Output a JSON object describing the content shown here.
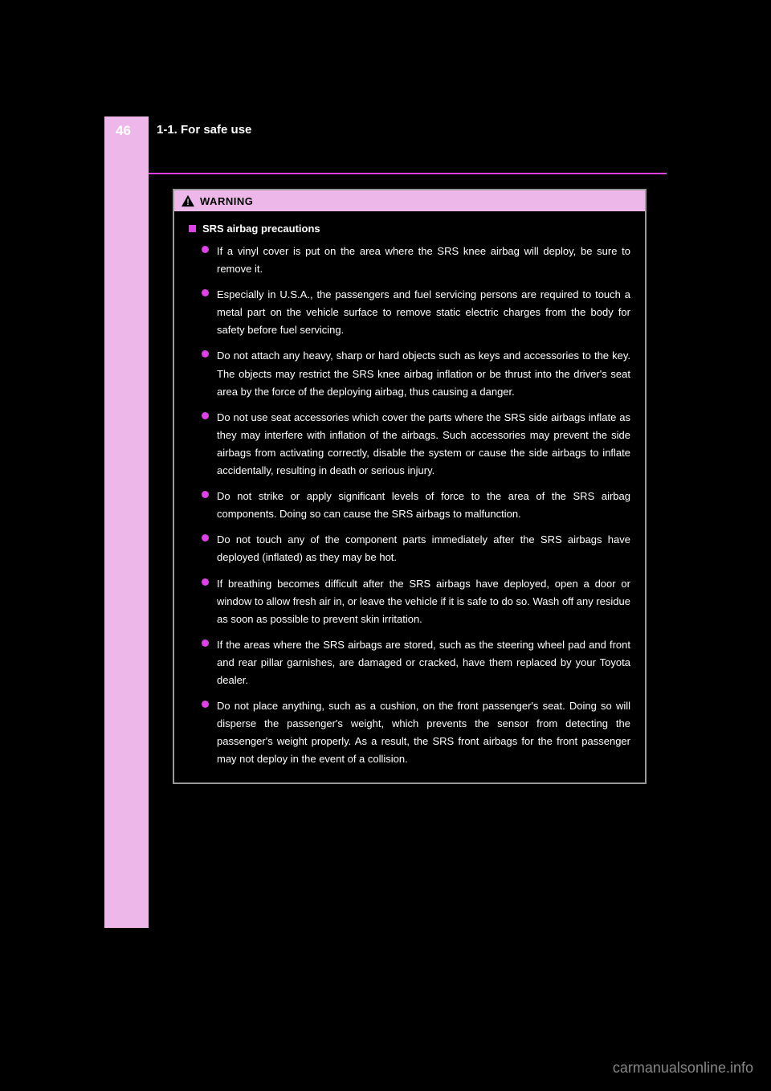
{
  "page": {
    "number": "46",
    "section_title": "1-1. For safe use"
  },
  "warning": {
    "label": "WARNING",
    "heading": "SRS airbag precautions",
    "bullets": [
      "If a vinyl cover is put on the area where the SRS knee airbag will deploy, be sure to remove it.",
      "Especially in U.S.A., the passengers and fuel servicing persons are required to touch a metal part on the vehicle surface to remove static electric charges from the body for safety before fuel servicing.",
      "Do not attach any heavy, sharp or hard objects such as keys and accessories to the key. The objects may restrict the SRS knee airbag inflation or be thrust into the driver's seat area by the force of the deploying airbag, thus causing a danger.",
      "Do not use seat accessories which cover the parts where the SRS side airbags inflate as they may interfere with inflation of the airbags. Such accessories may prevent the side airbags from activating correctly, disable the system or cause the side airbags to inflate accidentally, resulting in death or serious injury.",
      "Do not strike or apply significant levels of force to the area of the SRS airbag components. Doing so can cause the SRS airbags to malfunction.",
      "Do not touch any of the component parts immediately after the SRS airbags have deployed (inflated) as they may be hot.",
      "If breathing becomes difficult after the SRS airbags have deployed, open a door or window to allow fresh air in, or leave the vehicle if it is safe to do so. Wash off any residue as soon as possible to prevent skin irritation.",
      "If the areas where the SRS airbags are stored, such as the steering wheel pad and front and rear pillar garnishes, are damaged or cracked, have them replaced by your Toyota dealer.",
      "Do not place anything, such as a cushion, on the front passenger's seat. Doing so will disperse the passenger's weight, which prevents the sensor from detecting the passenger's weight properly. As a result, the SRS front airbags for the front passenger may not deploy in the event of a collision."
    ]
  },
  "watermark": "carmanualsonline.info",
  "colors": {
    "sidebar": "#eeb7ea",
    "accent": "#e040e8",
    "background": "#000000",
    "text": "#ffffff"
  }
}
